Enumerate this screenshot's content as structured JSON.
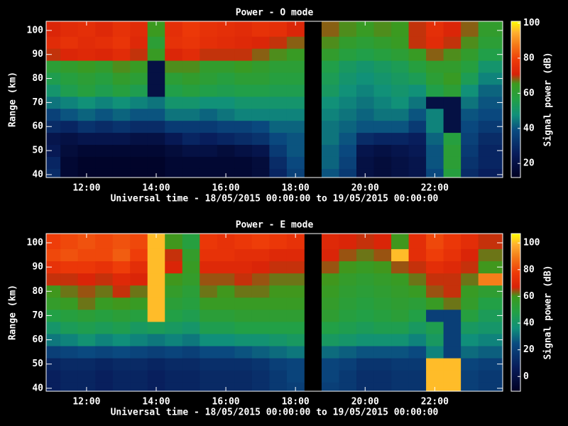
{
  "chart_data": [
    {
      "type": "heatmap",
      "title": "Power - O mode",
      "xlabel": "Universal time - 18/05/2015 00:00:00 to 19/05/2015 00:00:00",
      "ylabel": "Range (km)",
      "colorbar_label": "Signal power (dB)",
      "x": [
        11.0,
        11.5,
        12.0,
        12.5,
        13.0,
        13.5,
        14.0,
        14.5,
        15.0,
        15.5,
        16.0,
        16.5,
        17.0,
        17.5,
        18.0,
        18.5,
        19.0,
        19.5,
        20.0,
        20.5,
        21.0,
        21.5,
        22.0,
        22.5,
        23.0,
        23.5
      ],
      "y": [
        40,
        45,
        50,
        55,
        60,
        65,
        70,
        75,
        80,
        85,
        90,
        95,
        100
      ],
      "values": [
        [
          30,
          16,
          14,
          14,
          14,
          14,
          14,
          16,
          16,
          16,
          16,
          16,
          18,
          28,
          36,
          null,
          40,
          34,
          20,
          18,
          20,
          22,
          38,
          58,
          30,
          26
        ],
        [
          28,
          16,
          14,
          14,
          14,
          14,
          14,
          16,
          16,
          16,
          16,
          16,
          18,
          30,
          38,
          null,
          42,
          36,
          20,
          18,
          20,
          22,
          40,
          60,
          32,
          28
        ],
        [
          24,
          18,
          16,
          16,
          16,
          16,
          16,
          18,
          20,
          20,
          18,
          20,
          22,
          34,
          40,
          null,
          42,
          38,
          22,
          20,
          22,
          24,
          40,
          60,
          34,
          28
        ],
        [
          22,
          20,
          22,
          22,
          22,
          20,
          20,
          24,
          28,
          26,
          28,
          30,
          32,
          38,
          40,
          null,
          44,
          40,
          30,
          28,
          28,
          26,
          42,
          58,
          36,
          30
        ],
        [
          30,
          28,
          32,
          30,
          32,
          30,
          30,
          34,
          34,
          34,
          36,
          36,
          38,
          42,
          42,
          null,
          44,
          42,
          40,
          40,
          40,
          34,
          46,
          20,
          38,
          34
        ],
        [
          36,
          40,
          42,
          40,
          42,
          40,
          40,
          44,
          44,
          42,
          44,
          46,
          46,
          46,
          46,
          null,
          46,
          44,
          42,
          44,
          44,
          40,
          46,
          20,
          40,
          38
        ],
        [
          44,
          46,
          48,
          46,
          48,
          46,
          44,
          50,
          50,
          48,
          48,
          50,
          50,
          50,
          50,
          null,
          48,
          46,
          44,
          46,
          48,
          44,
          20,
          20,
          44,
          40
        ],
        [
          50,
          55,
          58,
          55,
          58,
          55,
          20,
          56,
          58,
          56,
          55,
          56,
          56,
          55,
          55,
          null,
          52,
          48,
          46,
          48,
          50,
          48,
          56,
          60,
          48,
          42
        ],
        [
          55,
          58,
          60,
          58,
          62,
          60,
          20,
          60,
          62,
          60,
          58,
          60,
          60,
          58,
          58,
          null,
          54,
          50,
          48,
          50,
          52,
          54,
          60,
          64,
          54,
          46
        ],
        [
          60,
          62,
          64,
          62,
          66,
          64,
          20,
          66,
          66,
          62,
          62,
          64,
          62,
          60,
          60,
          null,
          56,
          52,
          50,
          52,
          54,
          58,
          62,
          62,
          58,
          50
        ],
        [
          70,
          72,
          73,
          72,
          74,
          70,
          64,
          72,
          74,
          70,
          70,
          70,
          68,
          66,
          64,
          null,
          62,
          58,
          56,
          58,
          60,
          64,
          68,
          66,
          62,
          56
        ],
        [
          74,
          76,
          74,
          75,
          77,
          73,
          60,
          76,
          77,
          75,
          74,
          73,
          72,
          70,
          68,
          null,
          66,
          62,
          60,
          62,
          64,
          70,
          74,
          70,
          66,
          60
        ],
        [
          72,
          74,
          75,
          73,
          76,
          74,
          65,
          75,
          78,
          76,
          75,
          74,
          76,
          75,
          72,
          null,
          68,
          66,
          64,
          66,
          65,
          70,
          75,
          72,
          68,
          62
        ]
      ],
      "xlim": [
        10.84,
        23.95
      ],
      "ylim": [
        38.8,
        103.8
      ],
      "xticks": [
        {
          "value": 12,
          "label": "12:00"
        },
        {
          "value": 14,
          "label": "14:00"
        },
        {
          "value": 16,
          "label": "16:00"
        },
        {
          "value": 18,
          "label": "18:00"
        },
        {
          "value": 20,
          "label": "20:00"
        },
        {
          "value": 22,
          "label": "22:00"
        }
      ],
      "yticks": [
        40,
        50,
        60,
        70,
        80,
        90,
        100
      ],
      "clim": [
        12,
        101
      ],
      "cticks": [
        20,
        40,
        60,
        80,
        100
      ],
      "colorscale": [
        [
          0,
          "#000022"
        ],
        [
          0.15,
          "#081c5a"
        ],
        [
          0.3,
          "#0a4a80"
        ],
        [
          0.4,
          "#10907a"
        ],
        [
          0.5,
          "#22a046"
        ],
        [
          0.6,
          "#3c9a1e"
        ],
        [
          0.66,
          "#d82208"
        ],
        [
          0.75,
          "#ee3a08"
        ],
        [
          0.85,
          "#f47a18"
        ],
        [
          0.93,
          "#ffb030"
        ],
        [
          1,
          "#ffff00"
        ]
      ]
    },
    {
      "type": "heatmap",
      "title": "Power - E mode",
      "xlabel": "Universal time - 18/05/2015 00:00:00 to 19/05/2015 00:00:00",
      "ylabel": "Range (km)",
      "colorbar_label": "Signal power (dB)",
      "x": [
        11.0,
        11.5,
        12.0,
        12.5,
        13.0,
        13.5,
        14.0,
        14.5,
        15.0,
        15.5,
        16.0,
        16.5,
        17.0,
        17.5,
        18.0,
        18.5,
        19.0,
        19.5,
        20.0,
        20.5,
        21.0,
        21.5,
        22.0,
        22.5,
        23.0,
        23.5
      ],
      "y": [
        40,
        45,
        50,
        55,
        60,
        65,
        70,
        75,
        80,
        85,
        90,
        95,
        100
      ],
      "values": [
        [
          8,
          10,
          10,
          8,
          10,
          10,
          8,
          10,
          10,
          12,
          12,
          12,
          14,
          18,
          20,
          null,
          20,
          18,
          14,
          14,
          16,
          16,
          100,
          100,
          20,
          18
        ],
        [
          8,
          10,
          10,
          8,
          10,
          10,
          8,
          10,
          10,
          12,
          12,
          12,
          14,
          18,
          22,
          null,
          22,
          18,
          14,
          14,
          16,
          16,
          100,
          100,
          20,
          18
        ],
        [
          10,
          12,
          12,
          10,
          12,
          12,
          10,
          12,
          12,
          14,
          14,
          14,
          16,
          20,
          22,
          null,
          22,
          20,
          16,
          16,
          18,
          18,
          100,
          100,
          22,
          20
        ],
        [
          20,
          22,
          24,
          22,
          24,
          22,
          20,
          22,
          20,
          24,
          24,
          26,
          28,
          30,
          32,
          null,
          30,
          28,
          26,
          26,
          26,
          24,
          34,
          20,
          30,
          28
        ],
        [
          32,
          34,
          38,
          34,
          36,
          34,
          32,
          34,
          32,
          36,
          36,
          38,
          38,
          40,
          42,
          null,
          42,
          40,
          38,
          38,
          38,
          34,
          42,
          20,
          36,
          34
        ],
        [
          40,
          44,
          46,
          44,
          46,
          42,
          44,
          42,
          40,
          46,
          46,
          48,
          48,
          48,
          48,
          null,
          48,
          46,
          44,
          46,
          46,
          42,
          46,
          20,
          42,
          40
        ],
        [
          48,
          50,
          52,
          50,
          52,
          50,
          100,
          48,
          46,
          52,
          52,
          54,
          54,
          54,
          54,
          null,
          54,
          50,
          48,
          50,
          52,
          48,
          20,
          20,
          50,
          44
        ],
        [
          56,
          58,
          62,
          58,
          60,
          58,
          100,
          52,
          50,
          58,
          58,
          58,
          58,
          58,
          58,
          null,
          56,
          52,
          50,
          52,
          54,
          52,
          58,
          62,
          56,
          48
        ],
        [
          60,
          62,
          64,
          62,
          66,
          62,
          100,
          56,
          52,
          62,
          60,
          62,
          62,
          60,
          60,
          null,
          58,
          54,
          52,
          54,
          56,
          58,
          64,
          66,
          58,
          54
        ],
        [
          66,
          66,
          68,
          66,
          70,
          68,
          100,
          60,
          56,
          64,
          64,
          66,
          64,
          62,
          62,
          null,
          60,
          56,
          54,
          56,
          58,
          62,
          66,
          66,
          62,
          90
        ],
        [
          74,
          76,
          76,
          74,
          78,
          72,
          100,
          68,
          58,
          70,
          70,
          70,
          68,
          66,
          66,
          null,
          64,
          60,
          58,
          60,
          64,
          66,
          72,
          70,
          66,
          60
        ],
        [
          80,
          82,
          80,
          80,
          84,
          78,
          100,
          66,
          56,
          74,
          74,
          72,
          72,
          70,
          70,
          null,
          68,
          64,
          62,
          64,
          100,
          72,
          78,
          74,
          68,
          62
        ],
        [
          78,
          80,
          82,
          80,
          82,
          80,
          100,
          60,
          50,
          76,
          74,
          76,
          78,
          76,
          74,
          null,
          70,
          68,
          66,
          68,
          60,
          72,
          80,
          76,
          72,
          66
        ]
      ],
      "xlim": [
        10.84,
        23.95
      ],
      "ylim": [
        38.8,
        103.8
      ],
      "xticks": [
        {
          "value": 12,
          "label": "12:00"
        },
        {
          "value": 14,
          "label": "14:00"
        },
        {
          "value": 16,
          "label": "16:00"
        },
        {
          "value": 18,
          "label": "18:00"
        },
        {
          "value": 20,
          "label": "20:00"
        },
        {
          "value": 22,
          "label": "22:00"
        }
      ],
      "yticks": [
        40,
        50,
        60,
        70,
        80,
        90,
        100
      ],
      "clim": [
        -11,
        107
      ],
      "cticks": [
        0,
        20,
        40,
        60,
        80,
        100
      ],
      "colorscale": [
        [
          0,
          "#000022"
        ],
        [
          0.15,
          "#081c5a"
        ],
        [
          0.3,
          "#0a4a80"
        ],
        [
          0.4,
          "#10907a"
        ],
        [
          0.5,
          "#22a046"
        ],
        [
          0.6,
          "#3c9a1e"
        ],
        [
          0.66,
          "#d82208"
        ],
        [
          0.75,
          "#ee3a08"
        ],
        [
          0.85,
          "#f47a18"
        ],
        [
          0.93,
          "#ffb030"
        ],
        [
          1,
          "#ffff00"
        ]
      ]
    }
  ]
}
